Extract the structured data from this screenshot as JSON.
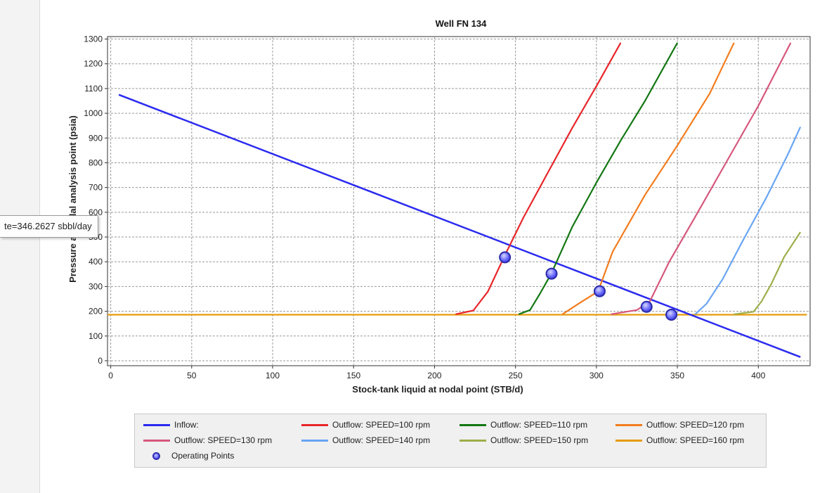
{
  "tooltip": {
    "text": "te=346.2627 sbbl/day"
  },
  "chart_data": {
    "type": "line",
    "title": "Well FN 134",
    "xlabel": "Stock-tank liquid at nodal point (STB/d)",
    "ylabel": "Pressure at nodal analysis point (psia)",
    "xlim": [
      -2,
      432
    ],
    "ylim": [
      -20,
      1310
    ],
    "xticks": [
      0,
      50,
      100,
      150,
      200,
      250,
      300,
      350,
      400
    ],
    "yticks": [
      0,
      100,
      200,
      300,
      400,
      500,
      600,
      700,
      800,
      900,
      1000,
      1100,
      1200,
      1300
    ],
    "grid": true,
    "legend_position": "bottom",
    "series": [
      {
        "name": "Inflow:",
        "color": "#2b2bf0",
        "x": [
          5,
          426
        ],
        "y": [
          1075,
          15
        ]
      },
      {
        "name": "Outflow: SPEED=100 rpm",
        "color": "#e8262b",
        "x": [
          213,
          224,
          233,
          243,
          255,
          270,
          285,
          300,
          315
        ],
        "y": [
          188,
          203,
          280,
          420,
          580,
          760,
          940,
          1110,
          1285
        ]
      },
      {
        "name": "Outflow: SPEED=110 rpm",
        "color": "#127712",
        "x": [
          252,
          259,
          265,
          272,
          285,
          300,
          315,
          330,
          350
        ],
        "y": [
          188,
          205,
          270,
          350,
          540,
          720,
          890,
          1050,
          1285
        ]
      },
      {
        "name": "Outflow: SPEED=120 rpm",
        "color": "#f37c1e",
        "x": [
          279,
          290,
          301,
          310,
          330,
          350,
          370,
          385
        ],
        "y": [
          188,
          235,
          280,
          440,
          670,
          870,
          1080,
          1285
        ]
      },
      {
        "name": "Outflow: SPEED=130 rpm",
        "color": "#d6577c",
        "x": [
          309,
          325,
          333,
          345,
          360,
          380,
          400,
          420
        ],
        "y": [
          188,
          205,
          240,
          400,
          570,
          800,
          1030,
          1285
        ]
      },
      {
        "name": "Outflow: SPEED=140 rpm",
        "color": "#69a5f5",
        "x": [
          361,
          368,
          378,
          390,
          405,
          418,
          426
        ],
        "y": [
          188,
          230,
          330,
          480,
          660,
          830,
          945
        ]
      },
      {
        "name": "Outflow: SPEED=150 rpm",
        "color": "#9caf4a",
        "x": [
          385,
          397,
          402,
          408,
          416,
          426
        ],
        "y": [
          188,
          198,
          240,
          310,
          420,
          520
        ]
      },
      {
        "name": "Outflow: SPEED=160 rpm",
        "color": "#e59c0c",
        "x": [
          -2,
          430
        ],
        "y": [
          186,
          186
        ]
      }
    ],
    "operating_points": {
      "name": "Operating Points",
      "x": [
        243.5,
        272.3,
        302,
        331,
        346.3
      ],
      "y": [
        418,
        352,
        281,
        218,
        186
      ]
    }
  }
}
